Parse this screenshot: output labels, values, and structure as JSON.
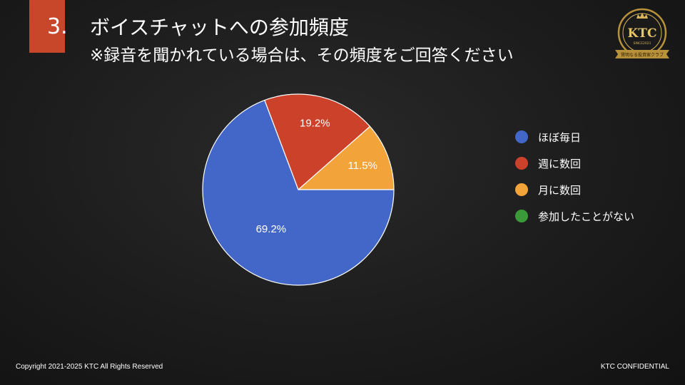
{
  "slide": {
    "number": "3.",
    "title": "ボイスチャットへの参加頻度",
    "subtitle": "※録音を聞かれている場合は、その頻度をご回答ください",
    "accent_color": "#c8472a"
  },
  "logo": {
    "text": "KTC",
    "since": "SINCE2021",
    "ribbon": "賢明なる投資家クラブ"
  },
  "chart_data": {
    "type": "pie",
    "title": "",
    "categories": [
      "ほぼ毎日",
      "週に数回",
      "月に数回",
      "参加したことがない"
    ],
    "values": [
      69.2,
      19.2,
      11.5,
      0
    ],
    "labels": [
      "69.2%",
      "19.2%",
      "11.5%",
      ""
    ],
    "colors": [
      "#4267c8",
      "#cc4129",
      "#f2a33a",
      "#3a9a3a"
    ],
    "legend_position": "right"
  },
  "footer": {
    "copyright": "Copyright 2021-2025 KTC All Rights Reserved",
    "confidential": "KTC CONFIDENTIAL"
  }
}
